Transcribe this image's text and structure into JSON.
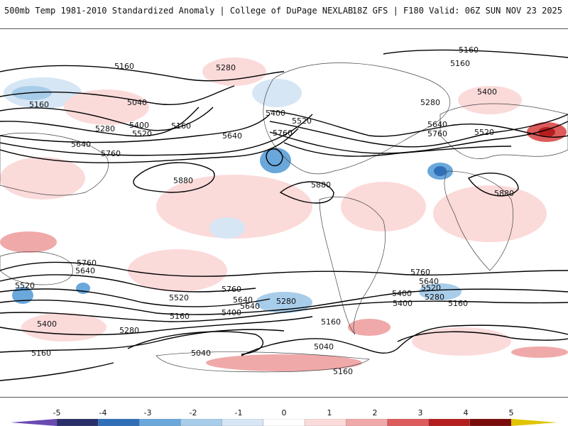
{
  "header": {
    "left": "500mb Temp 1981-2010 Standardized Anomaly | College of DuPage NEXLAB",
    "right": "18Z GFS | F180 Valid: 06Z SUN NOV 23 2025"
  },
  "contour_labels": [
    "5160",
    "5160",
    "5160",
    "5280",
    "5160",
    "5040",
    "5280",
    "5400",
    "5520",
    "5160",
    "5640",
    "5760",
    "5880",
    "5640",
    "5760",
    "5400",
    "5520",
    "5880",
    "5280",
    "5400",
    "5640",
    "5760",
    "5520",
    "5880",
    "5640",
    "5760",
    "5520",
    "5640",
    "5400",
    "5280",
    "5760",
    "5640",
    "5520",
    "5400",
    "5280",
    "5160",
    "5040",
    "5400",
    "5160",
    "5040",
    "5160",
    "5160",
    "5760",
    "5640",
    "5520",
    "5400",
    "5280",
    "5160"
  ],
  "colorbar": {
    "ticks": [
      "-5",
      "-4",
      "-3",
      "-2",
      "-1",
      "0",
      "1",
      "2",
      "3",
      "4",
      "5"
    ],
    "colors": [
      "#2a2f6b",
      "#2e6fb8",
      "#6aa7db",
      "#a8cdea",
      "#d6e6f5",
      "#ffffff",
      "#fbdada",
      "#f0a9a9",
      "#de5b5b",
      "#b51e1e",
      "#7a0b0b"
    ]
  },
  "colors": {
    "contour": "#000000",
    "land": "#444444",
    "cold": "#6aa7db",
    "warm": "#f3b7b7"
  }
}
